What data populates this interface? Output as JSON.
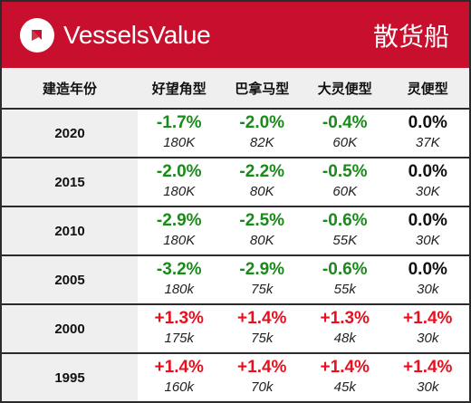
{
  "brand": {
    "name": "VesselsValue",
    "segment": "散货船"
  },
  "colors": {
    "banner": "#c8102e",
    "down": "#1a8a1a",
    "up": "#e8101e",
    "flat": "#111111"
  },
  "header": {
    "year_label": "建造年份",
    "columns": [
      "好望角型",
      "巴拿马型",
      "大灵便型",
      "灵便型"
    ]
  },
  "rows": [
    {
      "year": "2020",
      "cells": [
        {
          "change": "-1.7%",
          "value": "180K",
          "trend": "down"
        },
        {
          "change": "-2.0%",
          "value": "82K",
          "trend": "down"
        },
        {
          "change": "-0.4%",
          "value": "60K",
          "trend": "down"
        },
        {
          "change": "0.0%",
          "value": "37K",
          "trend": "flat"
        }
      ]
    },
    {
      "year": "2015",
      "cells": [
        {
          "change": "-2.0%",
          "value": "180K",
          "trend": "down"
        },
        {
          "change": "-2.2%",
          "value": "80K",
          "trend": "down"
        },
        {
          "change": "-0.5%",
          "value": "60K",
          "trend": "down"
        },
        {
          "change": "0.0%",
          "value": "30K",
          "trend": "flat"
        }
      ]
    },
    {
      "year": "2010",
      "cells": [
        {
          "change": "-2.9%",
          "value": "180K",
          "trend": "down"
        },
        {
          "change": "-2.5%",
          "value": "80K",
          "trend": "down"
        },
        {
          "change": "-0.6%",
          "value": "55K",
          "trend": "down"
        },
        {
          "change": "0.0%",
          "value": "30K",
          "trend": "flat"
        }
      ]
    },
    {
      "year": "2005",
      "cells": [
        {
          "change": "-3.2%",
          "value": "180k",
          "trend": "down"
        },
        {
          "change": "-2.9%",
          "value": "75k",
          "trend": "down"
        },
        {
          "change": "-0.6%",
          "value": "55k",
          "trend": "down"
        },
        {
          "change": "0.0%",
          "value": "30k",
          "trend": "flat"
        }
      ]
    },
    {
      "year": "2000",
      "cells": [
        {
          "change": "+1.3%",
          "value": "175k",
          "trend": "up"
        },
        {
          "change": "+1.4%",
          "value": "75k",
          "trend": "up"
        },
        {
          "change": "+1.3%",
          "value": "48k",
          "trend": "up"
        },
        {
          "change": "+1.4%",
          "value": "30k",
          "trend": "up"
        }
      ]
    },
    {
      "year": "1995",
      "cells": [
        {
          "change": "+1.4%",
          "value": "160k",
          "trend": "up"
        },
        {
          "change": "+1.4%",
          "value": "70k",
          "trend": "up"
        },
        {
          "change": "+1.4%",
          "value": "45k",
          "trend": "up"
        },
        {
          "change": "+1.4%",
          "value": "30k",
          "trend": "up"
        }
      ]
    }
  ]
}
